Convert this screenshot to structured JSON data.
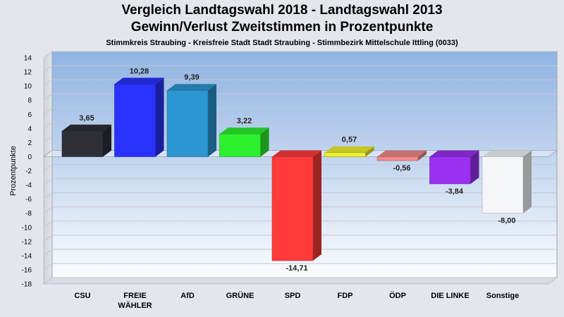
{
  "chart_data": {
    "type": "bar",
    "title": "Vergleich Landtagswahl 2018 - Landtagswahl 2013",
    "subtitle_line": "Gewinn/Verlust Zweitstimmen in Prozentpunkte",
    "subtitle": "Stimmkreis Straubing - Kreisfreie Stadt Stadt Straubing - Stimmbezirk Mittelschule Ittling (0033)",
    "ylabel": "Prozentpunkte",
    "xlabel": "",
    "ylim": [
      -18,
      14
    ],
    "ytick_step": 2,
    "grid": true,
    "categories": [
      [
        "CSU"
      ],
      [
        "FREIE",
        "WÄHLER"
      ],
      [
        "AfD"
      ],
      [
        "GRÜNE"
      ],
      [
        "SPD"
      ],
      [
        "FDP"
      ],
      [
        "ÖDP"
      ],
      [
        "DIE LINKE"
      ],
      [
        "Sonstige"
      ]
    ],
    "values": [
      3.65,
      10.28,
      9.39,
      3.22,
      -14.71,
      0.57,
      -0.56,
      -3.84,
      -8.0
    ],
    "value_labels": [
      "3,65",
      "10,28",
      "9,39",
      "3,22",
      "-14,71",
      "0,57",
      "-0,56",
      "-3,84",
      "-8,00"
    ],
    "colors": [
      "#2e3038",
      "#2a32ff",
      "#2c96d2",
      "#2ef02e",
      "#ff3a3a",
      "#f0f030",
      "#f08a8a",
      "#9a30f0",
      "#f4f6fa"
    ]
  }
}
